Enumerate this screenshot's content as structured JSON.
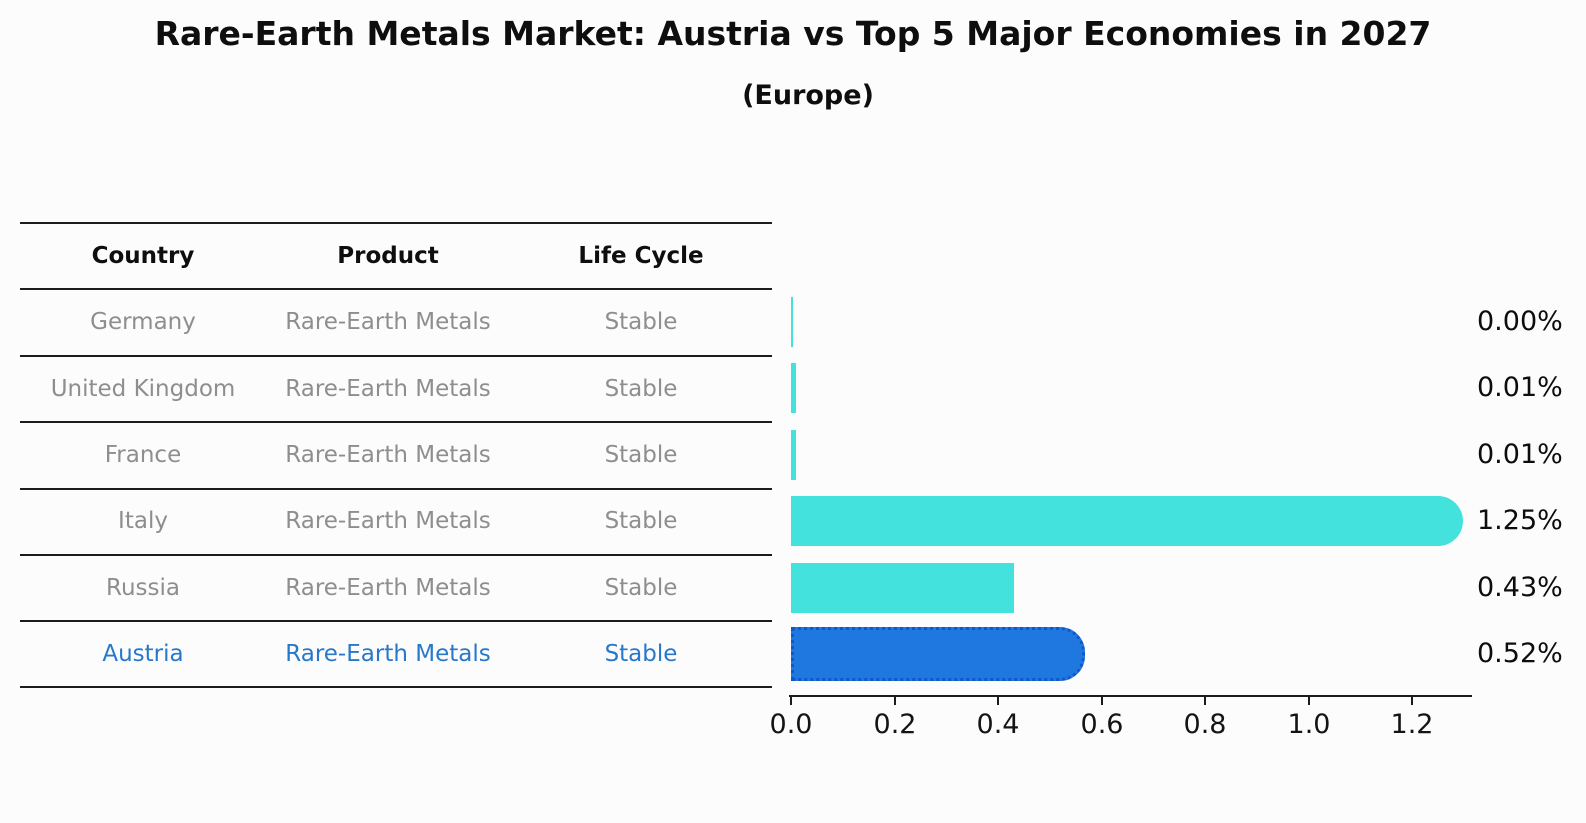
{
  "title": "Rare-Earth Metals Market: Austria vs Top 5 Major Economies in 2027",
  "subtitle": "(Europe)",
  "colors": {
    "bar_default": "#44e2dc",
    "bar_highlight": "#1e78e0",
    "bar_highlight_border": "#1057c8",
    "highlight_text": "#2878c9",
    "row_text": "#8e8e8e",
    "line_color": "#1c1c1c"
  },
  "table": {
    "headers": [
      "Country",
      "Product",
      "Life Cycle"
    ],
    "rows": [
      {
        "country": "Germany",
        "product": "Rare-Earth Metals",
        "life_cycle": "Stable",
        "highlight": false
      },
      {
        "country": "United Kingdom",
        "product": "Rare-Earth Metals",
        "life_cycle": "Stable",
        "highlight": false
      },
      {
        "country": "France",
        "product": "Rare-Earth Metals",
        "life_cycle": "Stable",
        "highlight": false
      },
      {
        "country": "Italy",
        "product": "Rare-Earth Metals",
        "life_cycle": "Stable",
        "highlight": false
      },
      {
        "country": "Russia",
        "product": "Rare-Earth Metals",
        "life_cycle": "Stable",
        "highlight": false
      },
      {
        "country": "Austria",
        "product": "Rare-Earth Metals",
        "life_cycle": "Stable",
        "highlight": true
      }
    ]
  },
  "chart_data": {
    "type": "bar",
    "orientation": "horizontal",
    "title": "Rare-Earth Metals Market: Austria vs Top 5 Major Economies in 2027",
    "subtitle": "(Europe)",
    "categories": [
      "Germany",
      "United Kingdom",
      "France",
      "Italy",
      "Russia",
      "Austria"
    ],
    "values": [
      0.0,
      0.01,
      0.01,
      1.25,
      0.43,
      0.52
    ],
    "labels": [
      "0.00%",
      "0.01%",
      "0.01%",
      "1.25%",
      "0.43%",
      "0.52%"
    ],
    "highlight_index": 5,
    "rounded_cap_indices": [
      3,
      5
    ],
    "xlabel": "",
    "ylabel": "",
    "xlim": [
      0,
      1.3125
    ],
    "xticks": [
      0.0,
      0.2,
      0.4,
      0.6,
      0.8,
      1.0,
      1.2
    ],
    "xtick_labels": [
      "0.0",
      "0.2",
      "0.4",
      "0.6",
      "0.8",
      "1.0",
      "1.2"
    ],
    "grid": false,
    "legend": false
  }
}
